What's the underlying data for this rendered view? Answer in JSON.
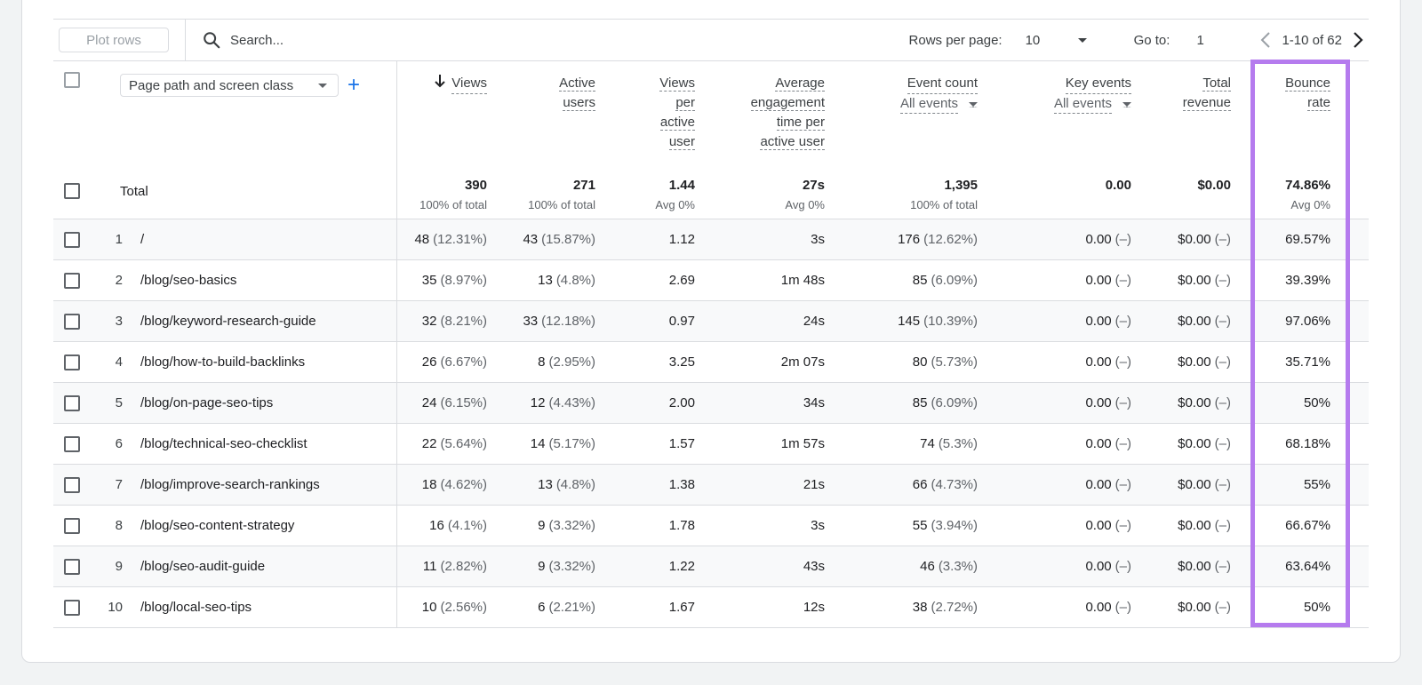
{
  "toolbar": {
    "plot_rows_label": "Plot rows",
    "search_placeholder": "Search...",
    "rows_per_page_label": "Rows per page:",
    "rows_per_page_value": "10",
    "go_to_label": "Go to:",
    "go_to_value": "1",
    "page_range": "1-10 of 62"
  },
  "dimension": {
    "selected": "Page path and screen class",
    "add_icon": "plus-icon"
  },
  "headers": {
    "views": "Views",
    "active_users_1": "Active",
    "active_users_2": "users",
    "vpau_1": "Views",
    "vpau_2": "per",
    "vpau_3": "active",
    "vpau_4": "user",
    "aet_1": "Average",
    "aet_2": "engagement",
    "aet_3": "time per",
    "aet_4": "active user",
    "event_count": "Event count",
    "event_count_filter": "All events",
    "key_events": "Key events",
    "key_events_filter": "All events",
    "total_revenue_1": "Total",
    "total_revenue_2": "revenue",
    "bounce_rate_1": "Bounce",
    "bounce_rate_2": "rate"
  },
  "totals": {
    "label": "Total",
    "views": "390",
    "views_sub": "100% of total",
    "active_users": "271",
    "active_users_sub": "100% of total",
    "vpau": "1.44",
    "vpau_sub": "Avg 0%",
    "aet": "27s",
    "aet_sub": "Avg 0%",
    "event_count": "1,395",
    "event_count_sub": "100% of total",
    "key_events": "0.00",
    "revenue": "$0.00",
    "bounce_rate": "74.86%",
    "bounce_rate_sub": "Avg 0%"
  },
  "rows": [
    {
      "idx": "1",
      "path": "/",
      "views": "48",
      "views_pct": "(12.31%)",
      "users": "43",
      "users_pct": "(15.87%)",
      "vpau": "1.12",
      "aet": "3s",
      "events": "176",
      "events_pct": "(12.62%)",
      "key": "0.00",
      "key_pct": "(–)",
      "rev": "$0.00",
      "rev_pct": "(–)",
      "bounce": "69.57%"
    },
    {
      "idx": "2",
      "path": "/blog/seo-basics",
      "views": "35",
      "views_pct": "(8.97%)",
      "users": "13",
      "users_pct": "(4.8%)",
      "vpau": "2.69",
      "aet": "1m 48s",
      "events": "85",
      "events_pct": "(6.09%)",
      "key": "0.00",
      "key_pct": "(–)",
      "rev": "$0.00",
      "rev_pct": "(–)",
      "bounce": "39.39%"
    },
    {
      "idx": "3",
      "path": "/blog/keyword-research-guide",
      "views": "32",
      "views_pct": "(8.21%)",
      "users": "33",
      "users_pct": "(12.18%)",
      "vpau": "0.97",
      "aet": "24s",
      "events": "145",
      "events_pct": "(10.39%)",
      "key": "0.00",
      "key_pct": "(–)",
      "rev": "$0.00",
      "rev_pct": "(–)",
      "bounce": "97.06%"
    },
    {
      "idx": "4",
      "path": "/blog/how-to-build-backlinks",
      "views": "26",
      "views_pct": "(6.67%)",
      "users": "8",
      "users_pct": "(2.95%)",
      "vpau": "3.25",
      "aet": "2m 07s",
      "events": "80",
      "events_pct": "(5.73%)",
      "key": "0.00",
      "key_pct": "(–)",
      "rev": "$0.00",
      "rev_pct": "(–)",
      "bounce": "35.71%"
    },
    {
      "idx": "5",
      "path": "/blog/on-page-seo-tips",
      "views": "24",
      "views_pct": "(6.15%)",
      "users": "12",
      "users_pct": "(4.43%)",
      "vpau": "2.00",
      "aet": "34s",
      "events": "85",
      "events_pct": "(6.09%)",
      "key": "0.00",
      "key_pct": "(–)",
      "rev": "$0.00",
      "rev_pct": "(–)",
      "bounce": "50%"
    },
    {
      "idx": "6",
      "path": "/blog/technical-seo-checklist",
      "views": "22",
      "views_pct": "(5.64%)",
      "users": "14",
      "users_pct": "(5.17%)",
      "vpau": "1.57",
      "aet": "1m 57s",
      "events": "74",
      "events_pct": "(5.3%)",
      "key": "0.00",
      "key_pct": "(–)",
      "rev": "$0.00",
      "rev_pct": "(–)",
      "bounce": "68.18%"
    },
    {
      "idx": "7",
      "path": "/blog/improve-search-rankings",
      "views": "18",
      "views_pct": "(4.62%)",
      "users": "13",
      "users_pct": "(4.8%)",
      "vpau": "1.38",
      "aet": "21s",
      "events": "66",
      "events_pct": "(4.73%)",
      "key": "0.00",
      "key_pct": "(–)",
      "rev": "$0.00",
      "rev_pct": "(–)",
      "bounce": "55%"
    },
    {
      "idx": "8",
      "path": "/blog/seo-content-strategy",
      "views": "16",
      "views_pct": "(4.1%)",
      "users": "9",
      "users_pct": "(3.32%)",
      "vpau": "1.78",
      "aet": "3s",
      "events": "55",
      "events_pct": "(3.94%)",
      "key": "0.00",
      "key_pct": "(–)",
      "rev": "$0.00",
      "rev_pct": "(–)",
      "bounce": "66.67%"
    },
    {
      "idx": "9",
      "path": "/blog/seo-audit-guide",
      "views": "11",
      "views_pct": "(2.82%)",
      "users": "9",
      "users_pct": "(3.32%)",
      "vpau": "1.22",
      "aet": "43s",
      "events": "46",
      "events_pct": "(3.3%)",
      "key": "0.00",
      "key_pct": "(–)",
      "rev": "$0.00",
      "rev_pct": "(–)",
      "bounce": "63.64%"
    },
    {
      "idx": "10",
      "path": "/blog/local-seo-tips",
      "views": "10",
      "views_pct": "(2.56%)",
      "users": "6",
      "users_pct": "(2.21%)",
      "vpau": "1.67",
      "aet": "12s",
      "events": "38",
      "events_pct": "(2.72%)",
      "key": "0.00",
      "key_pct": "(–)",
      "rev": "$0.00",
      "rev_pct": "(–)",
      "bounce": "50%"
    }
  ],
  "colors": {
    "highlight": "#b57bee",
    "link_blue": "#1a73e8"
  }
}
